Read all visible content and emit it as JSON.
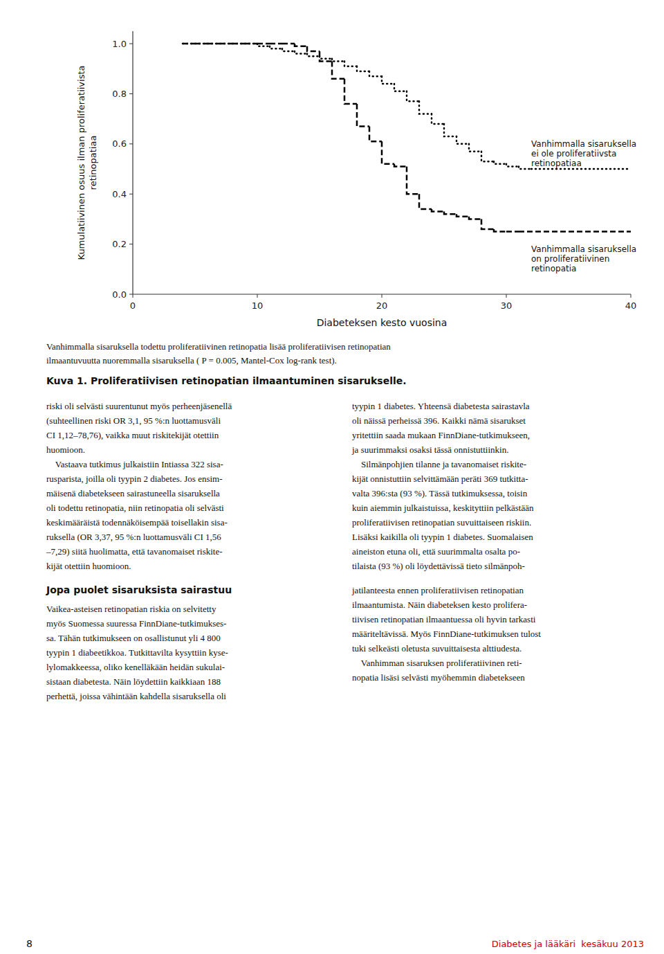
{
  "chart_data": {
    "type": "step",
    "xlabel": "Diabeteksen kesto vuosina",
    "ylabel": "Kumulatiivinen osuus ilman proliferatiivista\nretinopatiaa",
    "xlim": [
      0,
      40
    ],
    "ylim": [
      0.0,
      1.05
    ],
    "xticks": [
      0,
      10,
      20,
      30,
      40
    ],
    "yticks": [
      {
        "value": 0.0,
        "label": "0.0"
      },
      0.2,
      0.4,
      0.6,
      0.8,
      {
        "value": 1.0,
        "label": "1.0"
      }
    ],
    "grid": false,
    "series": [
      {
        "x": [
          4,
          5,
          6,
          7,
          8,
          9,
          10,
          11,
          12,
          13,
          14,
          15,
          16,
          17,
          18,
          19,
          20,
          21,
          22,
          23,
          24,
          25,
          26,
          27,
          28,
          29,
          30,
          31,
          32,
          33,
          34,
          35,
          36,
          37,
          38,
          40
        ],
        "values": [
          1.0,
          1.0,
          1.0,
          1.0,
          1.0,
          1.0,
          0.99,
          0.98,
          0.97,
          0.96,
          0.95,
          0.94,
          0.93,
          0.91,
          0.89,
          0.87,
          0.84,
          0.81,
          0.77,
          0.72,
          0.68,
          0.63,
          0.6,
          0.57,
          0.53,
          0.52,
          0.51,
          0.5,
          0.5,
          0.5,
          0.5,
          0.5,
          0.5,
          0.5,
          0.5,
          0.5
        ],
        "color": "#000000",
        "line_style": "dotted"
      },
      {
        "x": [
          4,
          5,
          6,
          7,
          8,
          9,
          10,
          11,
          12,
          13,
          14,
          15,
          16,
          17,
          18,
          19,
          20,
          21,
          22,
          23,
          24,
          25,
          26,
          27,
          28,
          29,
          30,
          31,
          40
        ],
        "values": [
          1.0,
          1.0,
          1.0,
          1.0,
          1.0,
          1.0,
          1.0,
          1.0,
          1.0,
          0.99,
          0.97,
          0.93,
          0.86,
          0.76,
          0.67,
          0.61,
          0.52,
          0.51,
          0.4,
          0.34,
          0.33,
          0.32,
          0.31,
          0.3,
          0.26,
          0.25,
          0.25,
          0.25,
          0.25
        ],
        "color": "#000000",
        "line_style": "dashed"
      }
    ],
    "annotations": [
      {
        "text": "Vanhimmalla sisaruksella\nei ole proliferatiivsta\nretinopatiaa",
        "x": 32,
        "y": 0.62
      },
      {
        "text": "Vanhimmalla sisaruksella\non proliferatiivinen\nretinopatia",
        "x": 32,
        "y": 0.2
      }
    ]
  },
  "page_text": {
    "caption": [
      "Vanhimmalla sisaruksella todettu proliferatiivinen retinopatia lisää proliferatiivisen retinopatian",
      "ilmaantuvuutta nuoremmalla sisaruksella ( P = 0.005, Mantel-Cox log-rank test)."
    ],
    "figure_label": "Kuva 1. Proliferatiivisen retinopatian ilmaantuminen sisarukselle.",
    "body_left_1": [
      "riski oli selvästi suurentunut myös perheenjäsenellä",
      "(suhteellinen riski OR 3,1, 95 %:n luottamusväli",
      "CI 1,12–78,76), vaikka muut riskitekijät otettiin",
      "huomioon.",
      "    Vastaava tutkimus julkaistiin Intiassa 322 sisa-",
      "rusparista, joilla oli tyypin 2 diabetes. Jos ensim-",
      "mäisenä diabetekseen sairastuneella sisaruksella",
      "oli todettu retinopatia, niin retinopatia oli selvästi",
      "keskimääräistä todennäköisempää toisellakin sisa-",
      "ruksella (OR 3,37, 95 %:n luottamusväli CI 1,56",
      "–7,29) siitä huolimatta, että tavanomaiset riskite-",
      "kijät otettiin huomioon."
    ],
    "body_right_1": [
      "tyypin 1 diabetes. Yhteensä diabetesta sairastavla",
      "oli näissä perheissä 396. Kaikki nämä sisarukset",
      "yritettiin saada mukaan FinnDiane-tutkimukseen,",
      "ja suurimmaksi osaksi tässä onnistuttiinkin.",
      "    Silmänpohjien tilanne ja tavanomaiset riskite-",
      "kijät onnistuttiin selvittämään peräti 369 tutkitta-",
      "valta 396:sta (93 %). Tässä tutkimuksessa, toisin",
      "kuin aiemmin julkaistuissa, keskityttiin pelkästään",
      "proliferatiivisen retinopatian suvuittaiseen riskiin.",
      "Lisäksi kaikilla oli tyypin 1 diabetes. Suomalaisen",
      "aineiston etuna oli, että suurimmalta osalta po-",
      "tilaista (93 %) oli löydettävissä tieto silmänpoh-"
    ],
    "heading": "Jopa puolet sisaruksista sairastuu",
    "body_left_2": [
      "Vaikea-asteisen retinopatian riskia on selvitetty",
      "myös Suomessa suuressa FinnDiane-tutkimukses-",
      "sa. Tähän tutkimukseen on osallistunut yli 4 800",
      "tyypin 1 diabeetikkoa. Tutkittavilta kysyttiin kyse-",
      "lylomakkeessa, oliko kenelläkään heidän sukulai-",
      "sistaan diabetesta. Näin löydettiin kaikkiaan 188",
      "perhettä, joissa vähintään kahdella sisaruksella oli"
    ],
    "body_right_2": [
      "jatilanteesta ennen proliferatiivisen retinopatian",
      "ilmaantumista. Näin diabeteksen kesto prolifera-",
      "tiivisen retinopatian ilmaantuessa oli hyvin tarkasti",
      "määriteltävissä. Myös FinnDiane-tutkimuksen tulost",
      "tuki selkeästi oletusta suvuittaisesta alttiudesta.",
      "    Vanhimman sisaruksen proliferatiivinen reti-",
      "nopatia lisäsi selvästi myöhemmin diabetekseen"
    ],
    "page_number": "8",
    "journal": "Diabetes ja lääkäri  kesäkuu 2013",
    "journal_color": "#cc0000"
  }
}
